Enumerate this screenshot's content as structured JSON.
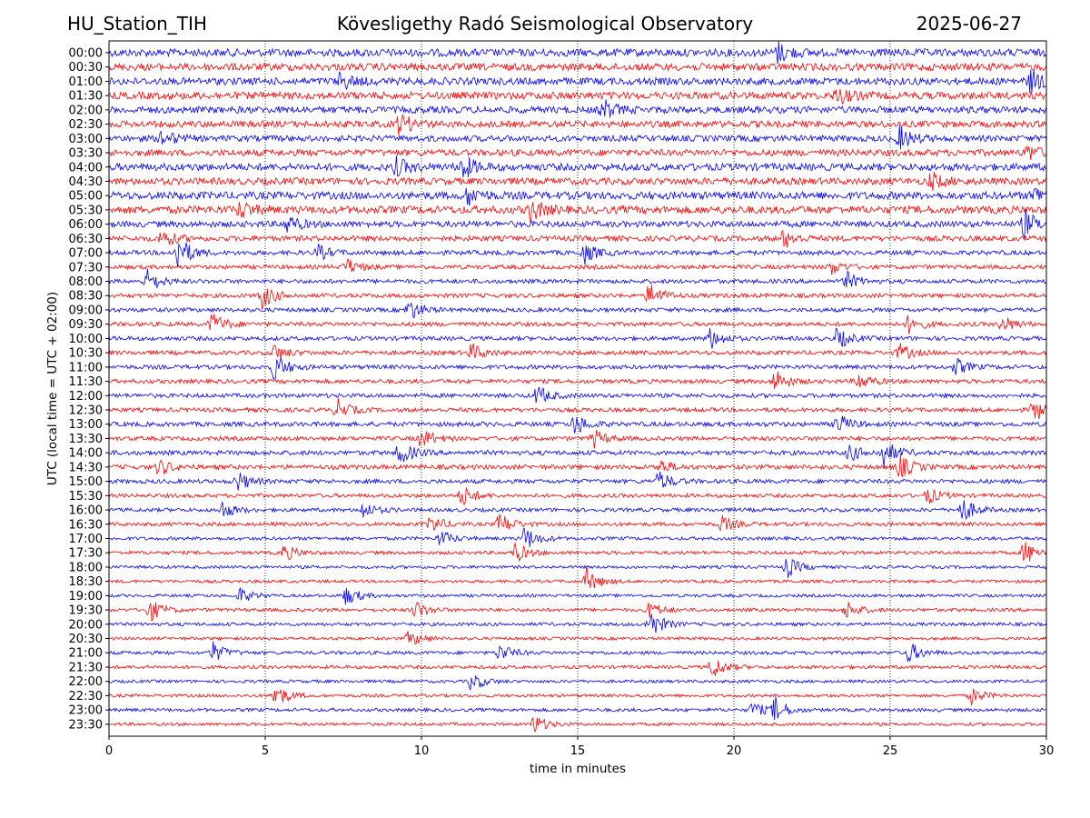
{
  "header": {
    "station": "HU_Station_TIH",
    "observatory": "Kövesligethy Radó Seismological Observatory",
    "date": "2025-06-27"
  },
  "chart_data": {
    "type": "line",
    "subtype": "helicorder",
    "xlabel": "time in minutes",
    "ylabel": "UTC (local time = UTC + 02:00)",
    "xlim": [
      0,
      30
    ],
    "x_ticks": [
      0,
      5,
      10,
      15,
      20,
      25,
      30
    ],
    "x_tick_labels": [
      "0",
      "5",
      "10",
      "15",
      "20",
      "25",
      "30"
    ],
    "grid": "vertical dotted lines at each x tick",
    "colors": {
      "even_rows": "#0000ff",
      "odd_rows": "#ff0000",
      "axes": "#000000"
    },
    "rows": [
      {
        "label": "00:00",
        "noise": 1.0,
        "events": [
          [
            21.4,
            1.2
          ]
        ]
      },
      {
        "label": "00:30",
        "noise": 0.95,
        "events": []
      },
      {
        "label": "01:00",
        "noise": 0.95,
        "events": [
          [
            7.4,
            1.0
          ],
          [
            29.5,
            1.4
          ]
        ]
      },
      {
        "label": "01:30",
        "noise": 0.95,
        "events": [
          [
            23.3,
            1.0
          ]
        ]
      },
      {
        "label": "02:00",
        "noise": 0.9,
        "events": [
          [
            15.8,
            1.2
          ]
        ]
      },
      {
        "label": "02:30",
        "noise": 0.85,
        "events": [
          [
            9.3,
            1.3
          ]
        ]
      },
      {
        "label": "03:00",
        "noise": 0.8,
        "events": [
          [
            1.7,
            1.0
          ],
          [
            25.3,
            1.4
          ]
        ]
      },
      {
        "label": "03:30",
        "noise": 0.85,
        "events": [
          [
            29.4,
            0.9
          ]
        ]
      },
      {
        "label": "04:00",
        "noise": 0.95,
        "events": [
          [
            11.3,
            1.5
          ],
          [
            9.2,
            1.0
          ]
        ]
      },
      {
        "label": "04:30",
        "noise": 0.9,
        "events": [
          [
            26.3,
            1.0
          ]
        ]
      },
      {
        "label": "05:00",
        "noise": 1.0,
        "events": [
          [
            11.5,
            1.1
          ],
          [
            29.6,
            1.0
          ]
        ]
      },
      {
        "label": "05:30",
        "noise": 1.0,
        "events": [
          [
            13.5,
            1.3
          ],
          [
            4.2,
            1.0
          ]
        ]
      },
      {
        "label": "06:00",
        "noise": 0.8,
        "events": [
          [
            5.7,
            1.1
          ],
          [
            29.3,
            1.6
          ]
        ]
      },
      {
        "label": "06:30",
        "noise": 0.7,
        "events": [
          [
            1.7,
            1.1
          ],
          [
            21.6,
            1.1
          ]
        ]
      },
      {
        "label": "07:00",
        "noise": 0.6,
        "events": [
          [
            2.2,
            2.2
          ],
          [
            15.2,
            1.3
          ],
          [
            6.7,
            0.9
          ]
        ]
      },
      {
        "label": "07:30",
        "noise": 0.55,
        "events": [
          [
            7.6,
            1.0
          ],
          [
            23.1,
            0.9
          ]
        ]
      },
      {
        "label": "08:00",
        "noise": 0.55,
        "events": [
          [
            1.2,
            1.5
          ],
          [
            23.6,
            1.1
          ]
        ]
      },
      {
        "label": "08:30",
        "noise": 0.55,
        "events": [
          [
            4.9,
            1.5
          ],
          [
            17.3,
            1.6
          ]
        ]
      },
      {
        "label": "09:00",
        "noise": 0.55,
        "events": [
          [
            9.6,
            1.3
          ]
        ]
      },
      {
        "label": "09:30",
        "noise": 0.55,
        "events": [
          [
            3.3,
            1.4
          ],
          [
            25.6,
            1.1
          ],
          [
            28.6,
            1.0
          ]
        ]
      },
      {
        "label": "10:00",
        "noise": 0.55,
        "events": [
          [
            19.2,
            1.4
          ],
          [
            23.3,
            1.3
          ]
        ]
      },
      {
        "label": "10:30",
        "noise": 0.55,
        "events": [
          [
            5.3,
            1.0
          ],
          [
            11.6,
            1.1
          ],
          [
            25.3,
            1.0
          ]
        ]
      },
      {
        "label": "11:00",
        "noise": 0.55,
        "events": [
          [
            5.3,
            1.7
          ],
          [
            27.1,
            1.0
          ]
        ]
      },
      {
        "label": "11:30",
        "noise": 0.55,
        "events": [
          [
            21.3,
            1.4
          ],
          [
            24.0,
            1.0
          ]
        ]
      },
      {
        "label": "12:00",
        "noise": 0.55,
        "events": [
          [
            13.7,
            1.2
          ]
        ]
      },
      {
        "label": "12:30",
        "noise": 0.55,
        "events": [
          [
            7.3,
            1.3
          ],
          [
            29.6,
            1.4
          ]
        ]
      },
      {
        "label": "13:00",
        "noise": 0.6,
        "events": [
          [
            14.9,
            1.3
          ],
          [
            23.3,
            1.3
          ]
        ]
      },
      {
        "label": "13:30",
        "noise": 0.55,
        "events": [
          [
            10.0,
            1.2
          ],
          [
            15.5,
            1.1
          ]
        ]
      },
      {
        "label": "14:00",
        "noise": 0.6,
        "events": [
          [
            9.3,
            1.5
          ],
          [
            24.8,
            1.6
          ],
          [
            23.7,
            1.0
          ]
        ]
      },
      {
        "label": "14:30",
        "noise": 0.6,
        "events": [
          [
            1.6,
            1.0
          ],
          [
            25.3,
            1.5
          ],
          [
            17.6,
            0.9
          ]
        ]
      },
      {
        "label": "15:00",
        "noise": 0.55,
        "events": [
          [
            4.1,
            1.2
          ],
          [
            17.6,
            1.2
          ]
        ]
      },
      {
        "label": "15:30",
        "noise": 0.5,
        "events": [
          [
            11.3,
            1.3
          ],
          [
            26.2,
            1.0
          ]
        ]
      },
      {
        "label": "16:00",
        "noise": 0.5,
        "events": [
          [
            3.6,
            1.1
          ],
          [
            27.3,
            1.6
          ],
          [
            8.1,
            1.0
          ]
        ]
      },
      {
        "label": "16:30",
        "noise": 0.5,
        "events": [
          [
            12.5,
            1.4
          ],
          [
            10.3,
            1.1
          ],
          [
            19.6,
            1.0
          ]
        ]
      },
      {
        "label": "17:00",
        "noise": 0.45,
        "events": [
          [
            13.3,
            1.5
          ],
          [
            10.6,
            1.0
          ]
        ]
      },
      {
        "label": "17:30",
        "noise": 0.45,
        "events": [
          [
            13.0,
            1.2
          ],
          [
            29.3,
            1.5
          ],
          [
            5.6,
            1.0
          ]
        ]
      },
      {
        "label": "18:00",
        "noise": 0.4,
        "events": [
          [
            21.7,
            1.3
          ]
        ]
      },
      {
        "label": "18:30",
        "noise": 0.4,
        "events": [
          [
            15.3,
            1.5
          ]
        ]
      },
      {
        "label": "19:00",
        "noise": 0.4,
        "events": [
          [
            7.6,
            1.2
          ],
          [
            4.2,
            0.9
          ]
        ]
      },
      {
        "label": "19:30",
        "noise": 0.45,
        "events": [
          [
            1.3,
            1.4
          ],
          [
            9.8,
            1.1
          ],
          [
            23.6,
            1.1
          ],
          [
            17.3,
            1.0
          ]
        ]
      },
      {
        "label": "20:00",
        "noise": 0.45,
        "events": [
          [
            17.3,
            1.9
          ]
        ]
      },
      {
        "label": "20:30",
        "noise": 0.4,
        "events": [
          [
            9.6,
            1.0
          ]
        ]
      },
      {
        "label": "21:00",
        "noise": 0.45,
        "events": [
          [
            3.3,
            1.3
          ],
          [
            12.5,
            1.1
          ],
          [
            25.6,
            1.3
          ]
        ]
      },
      {
        "label": "21:30",
        "noise": 0.45,
        "events": [
          [
            19.3,
            1.4
          ]
        ]
      },
      {
        "label": "22:00",
        "noise": 0.4,
        "events": [
          [
            11.6,
            1.2
          ]
        ]
      },
      {
        "label": "22:30",
        "noise": 0.4,
        "events": [
          [
            5.3,
            1.6
          ],
          [
            27.6,
            1.0
          ]
        ]
      },
      {
        "label": "23:00",
        "noise": 0.45,
        "events": [
          [
            21.3,
            1.5
          ],
          [
            20.6,
            1.0
          ]
        ]
      },
      {
        "label": "23:30",
        "noise": 0.4,
        "events": [
          [
            13.6,
            1.2
          ]
        ]
      }
    ]
  }
}
